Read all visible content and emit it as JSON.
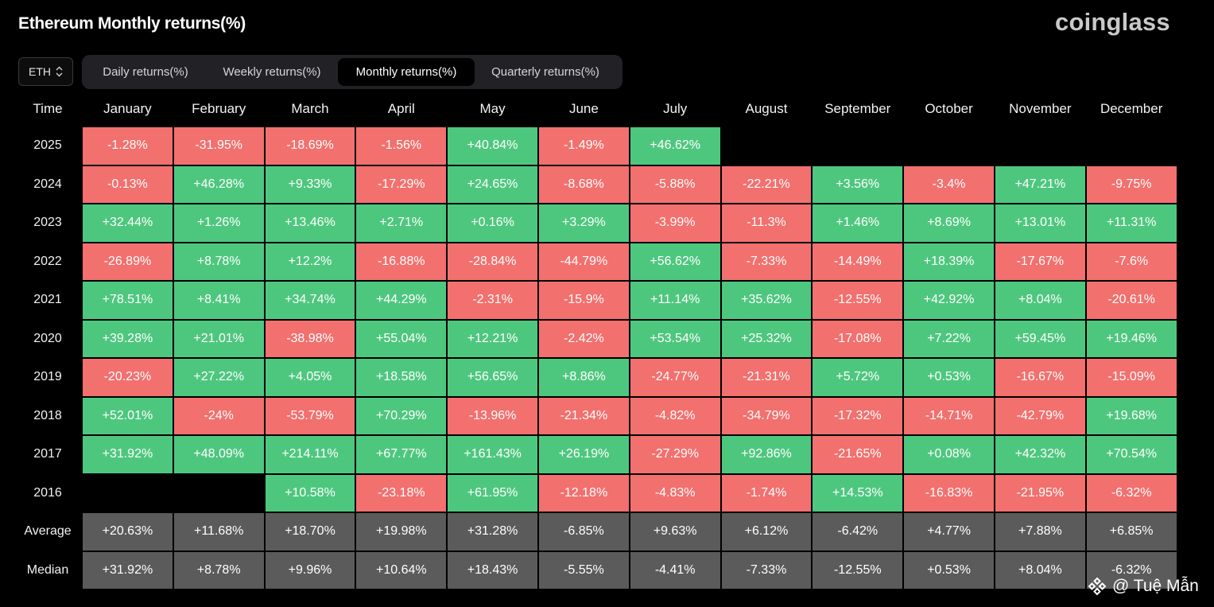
{
  "header": {
    "title": "Ethereum Monthly returns(%)",
    "brand": "coinglass"
  },
  "controls": {
    "coin": "ETH",
    "tabs": [
      {
        "label": "Daily returns(%)",
        "active": false
      },
      {
        "label": "Weekly returns(%)",
        "active": false
      },
      {
        "label": "Monthly returns(%)",
        "active": true
      },
      {
        "label": "Quarterly returns(%)",
        "active": false
      }
    ]
  },
  "table": {
    "corner_label": "Time",
    "months": [
      "January",
      "February",
      "March",
      "April",
      "May",
      "June",
      "July",
      "August",
      "September",
      "October",
      "November",
      "December"
    ],
    "rows": [
      {
        "label": "2025",
        "kind": "year",
        "cells": [
          "-1.28%",
          "-31.95%",
          "-18.69%",
          "-1.56%",
          "+40.84%",
          "-1.49%",
          "+46.62%",
          "",
          "",
          "",
          "",
          ""
        ]
      },
      {
        "label": "2024",
        "kind": "year",
        "cells": [
          "-0.13%",
          "+46.28%",
          "+9.33%",
          "-17.29%",
          "+24.65%",
          "-8.68%",
          "-5.88%",
          "-22.21%",
          "+3.56%",
          "-3.4%",
          "+47.21%",
          "-9.75%"
        ]
      },
      {
        "label": "2023",
        "kind": "year",
        "cells": [
          "+32.44%",
          "+1.26%",
          "+13.46%",
          "+2.71%",
          "+0.16%",
          "+3.29%",
          "-3.99%",
          "-11.3%",
          "+1.46%",
          "+8.69%",
          "+13.01%",
          "+11.31%"
        ]
      },
      {
        "label": "2022",
        "kind": "year",
        "cells": [
          "-26.89%",
          "+8.78%",
          "+12.2%",
          "-16.88%",
          "-28.84%",
          "-44.79%",
          "+56.62%",
          "-7.33%",
          "-14.49%",
          "+18.39%",
          "-17.67%",
          "-7.6%"
        ]
      },
      {
        "label": "2021",
        "kind": "year",
        "cells": [
          "+78.51%",
          "+8.41%",
          "+34.74%",
          "+44.29%",
          "-2.31%",
          "-15.9%",
          "+11.14%",
          "+35.62%",
          "-12.55%",
          "+42.92%",
          "+8.04%",
          "-20.61%"
        ]
      },
      {
        "label": "2020",
        "kind": "year",
        "cells": [
          "+39.28%",
          "+21.01%",
          "-38.98%",
          "+55.04%",
          "+12.21%",
          "-2.42%",
          "+53.54%",
          "+25.32%",
          "-17.08%",
          "+7.22%",
          "+59.45%",
          "+19.46%"
        ]
      },
      {
        "label": "2019",
        "kind": "year",
        "cells": [
          "-20.23%",
          "+27.22%",
          "+4.05%",
          "+18.58%",
          "+56.65%",
          "+8.86%",
          "-24.77%",
          "-21.31%",
          "+5.72%",
          "+0.53%",
          "-16.67%",
          "-15.09%"
        ]
      },
      {
        "label": "2018",
        "kind": "year",
        "cells": [
          "+52.01%",
          "-24%",
          "-53.79%",
          "+70.29%",
          "-13.96%",
          "-21.34%",
          "-4.82%",
          "-34.79%",
          "-17.32%",
          "-14.71%",
          "-42.79%",
          "+19.68%"
        ]
      },
      {
        "label": "2017",
        "kind": "year",
        "cells": [
          "+31.92%",
          "+48.09%",
          "+214.11%",
          "+67.77%",
          "+161.43%",
          "+26.19%",
          "-27.29%",
          "+92.86%",
          "-21.65%",
          "+0.08%",
          "+42.32%",
          "+70.54%"
        ]
      },
      {
        "label": "2016",
        "kind": "year",
        "cells": [
          "",
          "",
          "+10.58%",
          "-23.18%",
          "+61.95%",
          "-12.18%",
          "-4.83%",
          "-1.74%",
          "+14.53%",
          "-16.83%",
          "-21.95%",
          "-6.32%"
        ]
      },
      {
        "label": "Average",
        "kind": "aggregate",
        "cells": [
          "+20.63%",
          "+11.68%",
          "+18.70%",
          "+19.98%",
          "+31.28%",
          "-6.85%",
          "+9.63%",
          "+6.12%",
          "-6.42%",
          "+4.77%",
          "+7.88%",
          "+6.85%"
        ]
      },
      {
        "label": "Median",
        "kind": "aggregate",
        "cells": [
          "+31.92%",
          "+8.78%",
          "+9.96%",
          "+10.64%",
          "+18.43%",
          "-5.55%",
          "-4.41%",
          "-7.33%",
          "-12.55%",
          "+0.53%",
          "+8.04%",
          "-6.32%"
        ]
      }
    ]
  },
  "colors": {
    "positive": "#4ec77e",
    "negative": "#f2706e",
    "aggregate": "#5b5b5b"
  },
  "watermark": {
    "text": "@ Tuệ Mẫn",
    "icon": "binance-diamond-icon"
  }
}
